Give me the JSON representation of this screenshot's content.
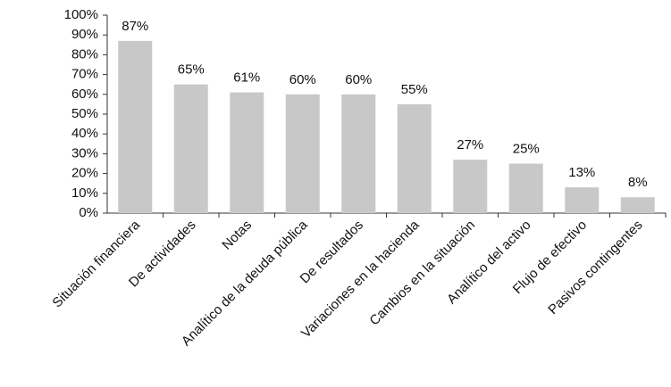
{
  "chart_data": {
    "type": "bar",
    "categories": [
      "Situación financiera",
      "De actividades",
      "Notas",
      "Analítico de la deuda pública",
      "De resultados",
      "Variaciones en la hacienda",
      "Cambios en la situación",
      "Analítico del activo",
      "Flujo de efectivo",
      "Pasivos contingentes"
    ],
    "values": [
      87,
      65,
      61,
      60,
      60,
      55,
      27,
      25,
      13,
      8
    ],
    "value_labels": [
      "87%",
      "65%",
      "61%",
      "60%",
      "60%",
      "55%",
      "27%",
      "25%",
      "13%",
      "8%"
    ],
    "color": "#c8c8c8",
    "ylim": [
      0,
      100
    ],
    "yticks": [
      {
        "value": 0,
        "label": "0%"
      },
      {
        "value": 10,
        "label": "10%"
      },
      {
        "value": 20,
        "label": "20%"
      },
      {
        "value": 30,
        "label": "30%"
      },
      {
        "value": 40,
        "label": "40%"
      },
      {
        "value": 50,
        "label": "50%"
      },
      {
        "value": 60,
        "label": "60%"
      },
      {
        "value": 70,
        "label": "70%"
      },
      {
        "value": 80,
        "label": "80%"
      },
      {
        "value": 90,
        "label": "90%"
      },
      {
        "value": 100,
        "label": "100%"
      }
    ],
    "grid": false
  }
}
